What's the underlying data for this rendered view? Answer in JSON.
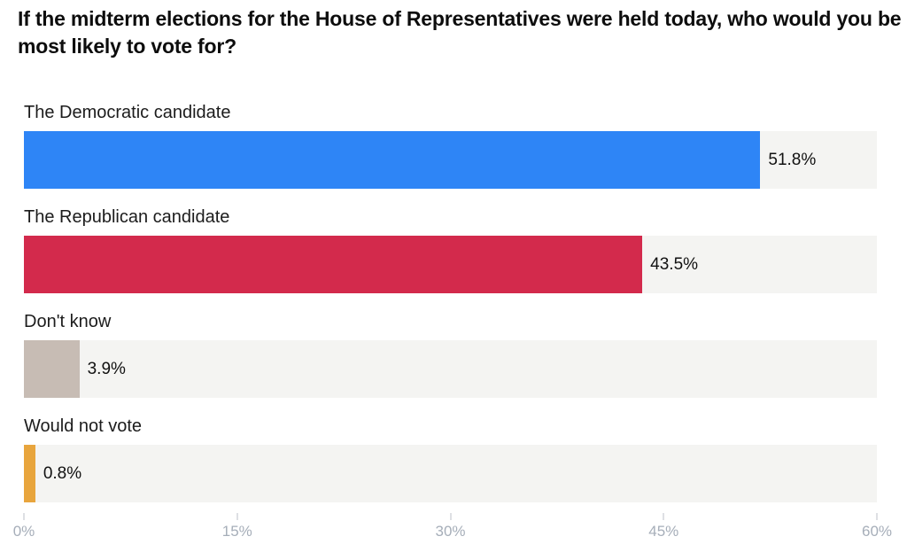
{
  "title": "If the midterm elections for the House of Representatives were held today, who would you be most likely to vote for?",
  "chart_data": {
    "type": "bar",
    "orientation": "horizontal",
    "title": "If the midterm elections for the House of Representatives were held today, who would you be most likely to vote for?",
    "categories": [
      "The Democratic candidate",
      "The Republican candidate",
      "Don't know",
      "Would not vote"
    ],
    "values": [
      51.8,
      43.5,
      3.9,
      0.8
    ],
    "value_labels": [
      "51.8%",
      "43.5%",
      "3.9%",
      "0.8%"
    ],
    "bar_colors": [
      "#2e85f6",
      "#d32a4c",
      "#c7bcb4",
      "#e8a53d"
    ],
    "track_color": "#f4f4f2",
    "xlabel": "",
    "ylabel": "",
    "xlim": [
      0,
      60
    ],
    "x_ticks": [
      "0%",
      "15%",
      "30%",
      "45%",
      "60%"
    ],
    "x_tick_values": [
      0,
      15,
      30,
      45,
      60
    ],
    "grid": false,
    "legend": false,
    "colors": {
      "tick_mark": "#bcc2ca",
      "tick_label": "#a6aeb9",
      "category_label": "#1c1c1c",
      "value_label": "#111111",
      "title": "#0d0d0d"
    }
  }
}
